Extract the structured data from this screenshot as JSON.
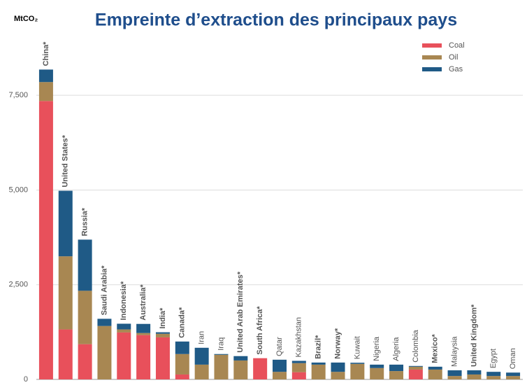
{
  "chart_data": {
    "type": "stacked_bar",
    "title": "Empreinte d’extraction des principaux pays",
    "y_label": "MtCO₂",
    "categories": [
      "China*",
      "United States*",
      "Russia*",
      "Saudi Arabia*",
      "Indonesia*",
      "Australia*",
      "India*",
      "Canada*",
      "Iran",
      "Iraq",
      "United Arab Emirates*",
      "South Africa*",
      "Qatar",
      "Kazakhstan",
      "Brazil*",
      "Norway*",
      "Kuwait",
      "Nigeria",
      "Algeria",
      "Colombia",
      "Mexico*",
      "Malaysia",
      "United Kingdom*",
      "Egypt",
      "Oman"
    ],
    "series": [
      {
        "name": "Coal",
        "color": "#e8505b",
        "values": [
          7350,
          1320,
          930,
          0,
          1240,
          1170,
          1110,
          130,
          0,
          0,
          0,
          560,
          0,
          190,
          0,
          0,
          0,
          0,
          0,
          260,
          0,
          0,
          0,
          0,
          0
        ]
      },
      {
        "name": "Oil",
        "color": "#a88752",
        "values": [
          500,
          1930,
          1410,
          1410,
          80,
          55,
          95,
          540,
          390,
          650,
          500,
          0,
          200,
          240,
          390,
          200,
          410,
          300,
          220,
          75,
          260,
          90,
          130,
          90,
          90
        ]
      },
      {
        "name": "Gas",
        "color": "#1f5a86",
        "values": [
          330,
          1730,
          1350,
          190,
          150,
          240,
          40,
          330,
          445,
          20,
          115,
          0,
          320,
          60,
          55,
          245,
          30,
          90,
          170,
          20,
          75,
          150,
          110,
          110,
          90
        ]
      }
    ],
    "ylim": [
      0,
      9000
    ],
    "yticks": [
      0,
      {
        "value": 2500,
        "label": "2,500"
      },
      {
        "value": 5000,
        "label": "5,000"
      },
      {
        "value": 7500,
        "label": "7,500"
      }
    ],
    "grid": true,
    "legend": "top-right"
  }
}
